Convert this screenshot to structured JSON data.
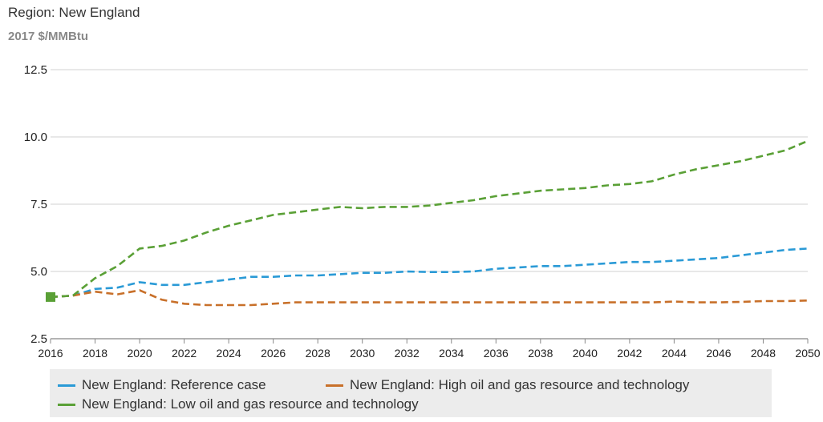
{
  "header": {
    "region": "Region: New England",
    "units": "2017 $/MMBtu"
  },
  "chart_data": {
    "type": "line",
    "ylim": [
      2.5,
      12.5
    ],
    "yticks": [
      "2.5",
      "5.0",
      "7.5",
      "10.0",
      "12.5"
    ],
    "xlim": [
      2016,
      2050
    ],
    "xticks": [
      "2016",
      "2018",
      "2020",
      "2022",
      "2024",
      "2026",
      "2028",
      "2030",
      "2032",
      "2034",
      "2036",
      "2038",
      "2040",
      "2042",
      "2044",
      "2046",
      "2048",
      "2050"
    ],
    "grid": true,
    "legend_position": "bottom",
    "x": [
      2016,
      2017,
      2018,
      2019,
      2020,
      2021,
      2022,
      2023,
      2024,
      2025,
      2026,
      2027,
      2028,
      2029,
      2030,
      2031,
      2032,
      2033,
      2034,
      2035,
      2036,
      2037,
      2038,
      2039,
      2040,
      2041,
      2042,
      2043,
      2044,
      2045,
      2046,
      2047,
      2048,
      2049,
      2050
    ],
    "series": [
      {
        "name": "New England: Reference case",
        "color": "#2a9ad6",
        "values": [
          4.05,
          4.1,
          4.35,
          4.4,
          4.6,
          4.5,
          4.5,
          4.6,
          4.7,
          4.8,
          4.8,
          4.85,
          4.85,
          4.9,
          4.95,
          4.95,
          5.0,
          4.98,
          4.98,
          5.0,
          5.1,
          5.15,
          5.2,
          5.2,
          5.25,
          5.3,
          5.35,
          5.35,
          5.4,
          5.45,
          5.5,
          5.6,
          5.7,
          5.8,
          5.85
        ]
      },
      {
        "name": "New England: High oil and gas resource and technology",
        "color": "#c8702a",
        "values": [
          4.05,
          4.1,
          4.25,
          4.15,
          4.3,
          3.95,
          3.8,
          3.75,
          3.75,
          3.75,
          3.8,
          3.85,
          3.85,
          3.85,
          3.85,
          3.85,
          3.85,
          3.85,
          3.85,
          3.85,
          3.85,
          3.85,
          3.85,
          3.85,
          3.85,
          3.85,
          3.85,
          3.85,
          3.88,
          3.85,
          3.85,
          3.87,
          3.9,
          3.9,
          3.92
        ]
      },
      {
        "name": "New England: Low oil and gas resource and technology",
        "color": "#5aa036",
        "values": [
          4.05,
          4.1,
          4.75,
          5.2,
          5.85,
          5.95,
          6.15,
          6.45,
          6.7,
          6.9,
          7.1,
          7.2,
          7.3,
          7.4,
          7.35,
          7.4,
          7.4,
          7.45,
          7.55,
          7.65,
          7.8,
          7.9,
          8.0,
          8.05,
          8.1,
          8.2,
          8.25,
          8.35,
          8.6,
          8.8,
          8.95,
          9.1,
          9.3,
          9.5,
          9.85
        ]
      }
    ],
    "marker": {
      "x": 2016,
      "y": 4.05,
      "color": "#5aa036"
    }
  }
}
